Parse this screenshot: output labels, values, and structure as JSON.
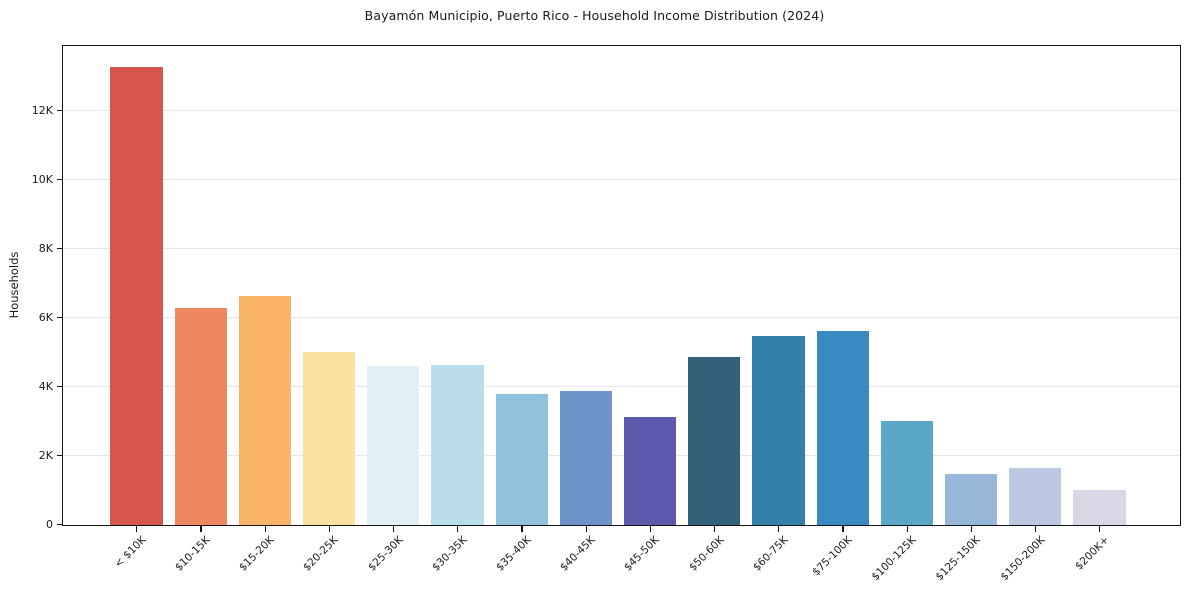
{
  "title": "Bayamón Municipio, Puerto Rico - Household Income Distribution (2024)",
  "chart_data": {
    "type": "bar",
    "title": "Bayamón Municipio, Puerto Rico - Household Income Distribution (2024)",
    "xlabel": "",
    "ylabel": "Households",
    "categories": [
      "< $10K",
      "$10-15K",
      "$15-20K",
      "$20-25K",
      "$25-30K",
      "$30-35K",
      "$35-40K",
      "$40-45K",
      "$45-50K",
      "$50-60K",
      "$60-75K",
      "$75-100K",
      "$100-125K",
      "$125-150K",
      "$150-200K",
      "$200K+"
    ],
    "values": [
      13280,
      6290,
      6640,
      5010,
      4620,
      4650,
      3810,
      3880,
      3120,
      4860,
      5490,
      5630,
      3030,
      1470,
      1650,
      1020
    ],
    "bar_colors": [
      "#d6564e",
      "#f18663",
      "#fab469",
      "#fce2a2",
      "#e2f0f6",
      "#b9ddeb",
      "#90c1dd",
      "#6e93c8",
      "#5c59ac",
      "#34607a",
      "#3380ab",
      "#388ac1",
      "#5aa7c7",
      "#96b7d7",
      "#bac8e2",
      "#d8d7e5"
    ],
    "y_ticks": [
      {
        "label": "0",
        "value": 0
      },
      {
        "label": "2K",
        "value": 2000
      },
      {
        "label": "4K",
        "value": 4000
      },
      {
        "label": "6K",
        "value": 6000
      },
      {
        "label": "8K",
        "value": 8000
      },
      {
        "label": "10K",
        "value": 10000
      },
      {
        "label": "12K",
        "value": 12000
      }
    ],
    "ylim": [
      0,
      13870
    ],
    "grid": "horizontal",
    "grid_color": "#e8e8e8",
    "legend": "none",
    "x_tick_rotation_deg": 45,
    "axis_color": "#141414",
    "background_color": "#ffffff"
  }
}
